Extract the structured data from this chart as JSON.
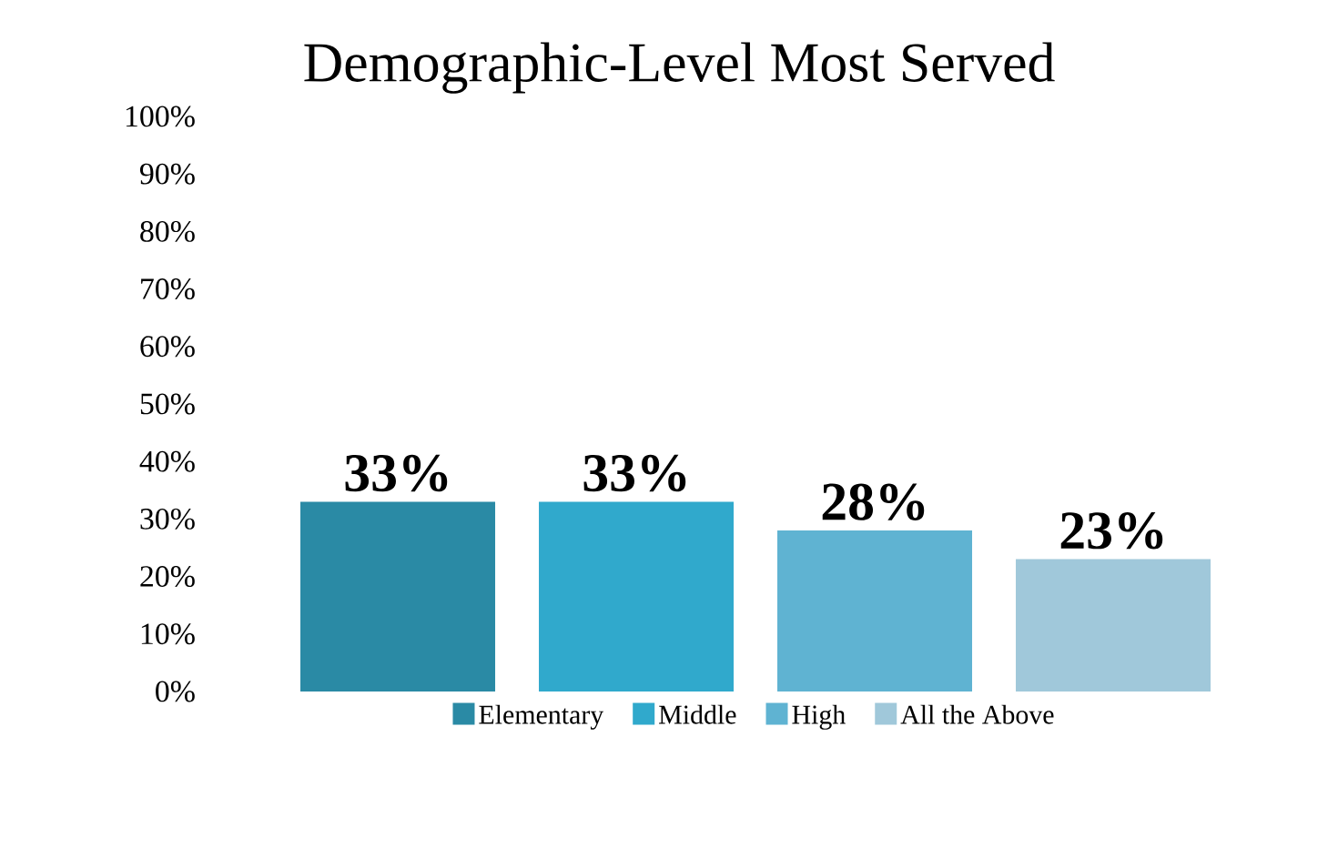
{
  "chart_data": {
    "type": "bar",
    "title": "Demographic-Level Most Served",
    "categories": [
      null
    ],
    "series": [
      {
        "name": "Elementary",
        "color": "#2a8aa5",
        "values": [
          33
        ],
        "value_labels": [
          "33%"
        ]
      },
      {
        "name": "Middle",
        "color": "#30a9cc",
        "values": [
          33
        ],
        "value_labels": [
          "33%"
        ]
      },
      {
        "name": "High",
        "color": "#5fb3d2",
        "values": [
          28
        ],
        "value_labels": [
          "28%"
        ]
      },
      {
        "name": "All the Above",
        "color": "#a0c8da",
        "values": [
          23
        ],
        "value_labels": [
          "23%"
        ]
      }
    ],
    "ylim": [
      0,
      100
    ],
    "yticks": [
      {
        "value": 0,
        "label": "0%"
      },
      {
        "value": 10,
        "label": "10%"
      },
      {
        "value": 20,
        "label": "20%"
      },
      {
        "value": 30,
        "label": "30%"
      },
      {
        "value": 40,
        "label": "40%"
      },
      {
        "value": 50,
        "label": "50%"
      },
      {
        "value": 60,
        "label": "60%"
      },
      {
        "value": 70,
        "label": "70%"
      },
      {
        "value": 80,
        "label": "80%"
      },
      {
        "value": 90,
        "label": "90%"
      },
      {
        "value": 100,
        "label": "100%"
      }
    ],
    "grid": false,
    "legend": "bottom"
  }
}
